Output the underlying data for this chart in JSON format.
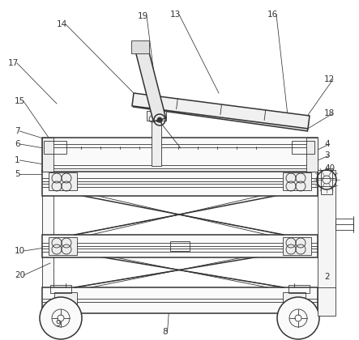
{
  "bg_color": "#ffffff",
  "lc": "#333333",
  "lw": 1.1,
  "tw": 0.6,
  "ldw": 0.55,
  "fs": 7.5,
  "figsize": [
    4.43,
    4.2
  ],
  "dpi": 100
}
